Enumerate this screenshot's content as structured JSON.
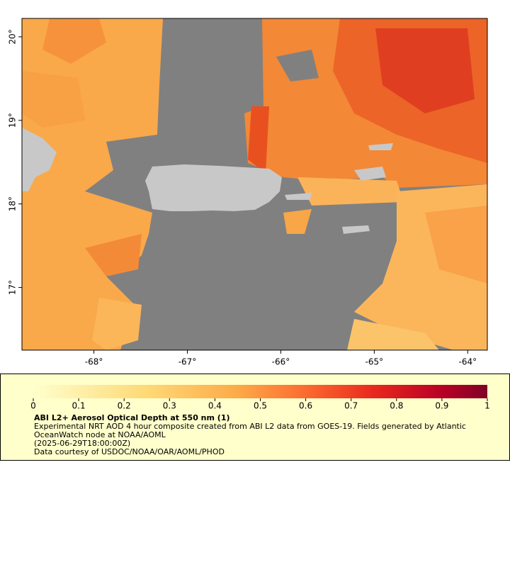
{
  "map": {
    "lat_lim": [
      16.25,
      20.22
    ],
    "lon_lim": [
      -68.77,
      -63.79
    ],
    "lat_ticks": [
      {
        "value": 17,
        "label": "17°"
      },
      {
        "value": 18,
        "label": "18°"
      },
      {
        "value": 19,
        "label": "19°"
      },
      {
        "value": 20,
        "label": "20°"
      }
    ],
    "lon_ticks": [
      {
        "value": -68,
        "label": "-68°"
      },
      {
        "value": -67,
        "label": "-67°"
      },
      {
        "value": -66,
        "label": "-66°"
      },
      {
        "value": -65,
        "label": "-65°"
      },
      {
        "value": -64,
        "label": "-64°"
      }
    ]
  },
  "colorbar": {
    "lim": [
      0,
      1
    ],
    "ticks": [
      0,
      0.1,
      0.2,
      0.3,
      0.4,
      0.5,
      0.6,
      0.7,
      0.8,
      0.9,
      1
    ]
  },
  "legend": {
    "title": "ABI L2+ Aerosol Optical Depth at 550 nm (1)",
    "lines": [
      "Experimental NRT AOD 4 hour composite created from ABI L2 data from GOES-19. Fields generated by Atlantic",
      "OceanWatch node at NOAA/AOML",
      "(2025-06-29T18:00:00Z)",
      "Data courtesy of USDOC/NOAA/OAR/AOML/PHOD"
    ]
  }
}
